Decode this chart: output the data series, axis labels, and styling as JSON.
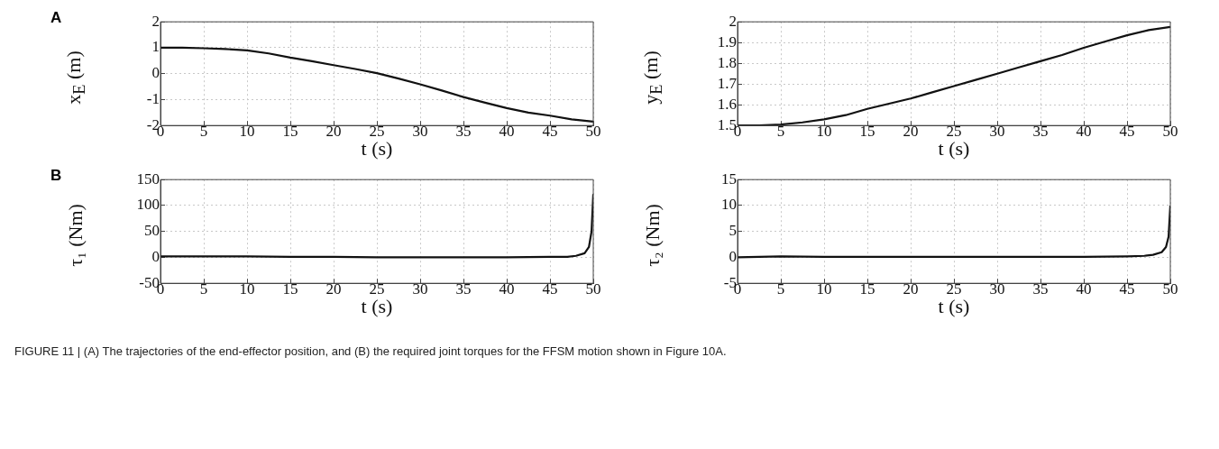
{
  "chart_data": [
    {
      "type": "line",
      "annotations": [
        "A",
        "FIGURE 11 | (A) The trajectories of the end-effector position, and (B) the required joint torques for the FFSM motion shown in Figure 10A."
      ],
      "xlabel": "t (s)",
      "ylabel": "x$_{E}$ (m)",
      "xlim": [
        0,
        50
      ],
      "xticks": [
        0,
        5,
        10,
        15,
        20,
        25,
        30,
        35,
        40,
        45,
        50
      ],
      "ylim": [
        -2,
        2
      ],
      "yticks": [
        -2,
        -1,
        0,
        1,
        2
      ],
      "grid": true,
      "line_style": "solid",
      "series": [
        {
          "color": "#111111",
          "x": [
            0,
            2.5,
            5,
            7.5,
            10,
            12.5,
            15,
            17.5,
            20,
            22.5,
            25,
            27.5,
            30,
            32.5,
            35,
            37.5,
            40,
            42.5,
            45,
            47.5,
            50
          ],
          "values": [
            1,
            1,
            0.98,
            0.95,
            0.9,
            0.78,
            0.62,
            0.48,
            0.33,
            0.18,
            0.02,
            -0.19,
            -0.41,
            -0.65,
            -0.9,
            -1.12,
            -1.33,
            -1.5,
            -1.62,
            -1.76,
            -1.85
          ]
        }
      ]
    },
    {
      "type": "line",
      "xlabel": "t (s)",
      "ylabel": "y$_{E}$ (m)",
      "xlim": [
        0,
        50
      ],
      "xticks": [
        0,
        5,
        10,
        15,
        20,
        25,
        30,
        35,
        40,
        45,
        50
      ],
      "ylim": [
        1.5,
        2
      ],
      "yticks": [
        1.5,
        1.6,
        1.7,
        1.8,
        1.9,
        2
      ],
      "grid": true,
      "line_style": "solid",
      "series": [
        {
          "color": "#111111",
          "x": [
            0,
            2.5,
            5,
            7.5,
            10,
            12.5,
            15,
            17.5,
            20,
            22.5,
            25,
            27.5,
            30,
            32.5,
            35,
            37.5,
            40,
            42.5,
            45,
            47.5,
            50
          ],
          "values": [
            1.5,
            1.5,
            1.505,
            1.515,
            1.53,
            1.55,
            1.58,
            1.605,
            1.63,
            1.66,
            1.69,
            1.72,
            1.75,
            1.78,
            1.81,
            1.84,
            1.875,
            1.905,
            1.935,
            1.96,
            1.975
          ]
        }
      ]
    },
    {
      "type": "line",
      "annotations": [
        "B"
      ],
      "xlabel": "t (s)",
      "ylabel": "τ₁ (Nm)",
      "xlim": [
        0,
        50
      ],
      "xticks": [
        0,
        5,
        10,
        15,
        20,
        25,
        30,
        35,
        40,
        45,
        50
      ],
      "ylim": [
        -50,
        150
      ],
      "yticks": [
        -50,
        0,
        50,
        100,
        150
      ],
      "grid": true,
      "line_style": "solid",
      "series": [
        {
          "color": "#111111",
          "x": [
            0,
            5,
            10,
            15,
            20,
            25,
            30,
            35,
            40,
            45,
            47,
            48,
            49,
            49.5,
            49.8,
            50
          ],
          "values": [
            2,
            2,
            2,
            1,
            1,
            0,
            0,
            0,
            0,
            1,
            1,
            3,
            8,
            20,
            50,
            122
          ]
        }
      ]
    },
    {
      "type": "line",
      "xlabel": "t (s)",
      "ylabel": "τ₂ (Nm)",
      "xlim": [
        0,
        50
      ],
      "xticks": [
        0,
        5,
        10,
        15,
        20,
        25,
        30,
        35,
        40,
        45,
        50
      ],
      "ylim": [
        -5,
        15
      ],
      "yticks": [
        -5,
        0,
        5,
        10,
        15
      ],
      "grid": true,
      "line_style": "solid",
      "series": [
        {
          "color": "#111111",
          "x": [
            0,
            5,
            10,
            15,
            20,
            25,
            30,
            35,
            40,
            45,
            47,
            48,
            49,
            49.5,
            49.8,
            50
          ],
          "values": [
            0,
            0.2,
            0.1,
            0.1,
            0.1,
            0.1,
            0.1,
            0.1,
            0.1,
            0.2,
            0.3,
            0.5,
            1,
            2,
            4,
            10
          ]
        }
      ]
    }
  ]
}
